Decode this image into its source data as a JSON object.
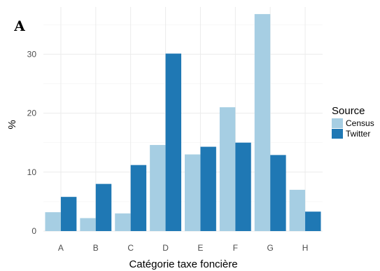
{
  "panel_tag": "A",
  "chart_data": {
    "type": "bar",
    "categories": [
      "A",
      "B",
      "C",
      "D",
      "E",
      "F",
      "G",
      "H"
    ],
    "series": [
      {
        "name": "Census",
        "values": [
          3.2,
          2.2,
          3.0,
          14.6,
          13.0,
          21.0,
          36.8,
          7.0
        ],
        "color": "#a6cee3"
      },
      {
        "name": "Twitter",
        "values": [
          5.8,
          8.0,
          11.2,
          30.1,
          14.3,
          15.0,
          12.9,
          3.3
        ],
        "color": "#1f78b4"
      }
    ],
    "title": "",
    "xlabel": "Catégorie taxe foncière",
    "ylabel": "%",
    "ylim": [
      0,
      38
    ],
    "yticks": [
      0,
      10,
      20,
      30
    ],
    "legend": {
      "title": "Source",
      "position": "right"
    },
    "grid": true
  }
}
